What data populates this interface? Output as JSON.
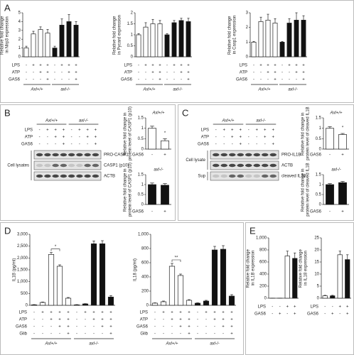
{
  "panels": [
    {
      "label": "A",
      "groups": [
        "Axl+/+",
        "axl-/-"
      ],
      "conditions": [
        {
          "name": "LPS",
          "signs": [
            "-",
            "+",
            "+",
            "+",
            "-",
            "+",
            "+",
            "+"
          ]
        },
        {
          "name": "ATP",
          "signs": [
            "-",
            "-",
            "+",
            "+",
            "-",
            "-",
            "+",
            "+"
          ]
        },
        {
          "name": "GAS6",
          "signs": [
            "-",
            "-",
            "-",
            "+",
            "-",
            "-",
            "-",
            "+"
          ]
        }
      ]
    },
    {
      "label": "B",
      "groups": [
        "Axl+/+",
        "axl-/-"
      ],
      "conditions": [
        {
          "name": "LPS",
          "signs": [
            "-",
            "+",
            "+",
            "+",
            "-",
            "+",
            "+",
            "+"
          ]
        },
        {
          "name": "ATP",
          "signs": [
            "-",
            "-",
            "+",
            "+",
            "-",
            "-",
            "+",
            "+"
          ]
        },
        {
          "name": "GAS6",
          "signs": [
            "-",
            "-",
            "-",
            "+",
            "-",
            "-",
            "-",
            "+"
          ]
        }
      ],
      "blot_rows": [
        "PRO-CASP1",
        "CASP1 (p10)",
        "ACTB"
      ],
      "blot_sections": [
        "Cell lysates"
      ]
    },
    {
      "label": "C",
      "groups": [
        "Axl+/+",
        "axl-/-"
      ],
      "conditions": [
        {
          "name": "LPS",
          "signs": [
            "-",
            "+",
            "+",
            "+",
            "-",
            "+",
            "+",
            "+"
          ]
        },
        {
          "name": "ATP",
          "signs": [
            "-",
            "-",
            "+",
            "+",
            "-",
            "-",
            "+",
            "+"
          ]
        },
        {
          "name": "GAS6",
          "signs": [
            "-",
            "-",
            "-",
            "+",
            "-",
            "-",
            "-",
            "+"
          ]
        }
      ],
      "blot_rows": [
        "PRO-IL1B",
        "ACTB",
        "cleaved IL1B"
      ],
      "blot_sections": [
        "Cell lysate",
        "Sup"
      ]
    },
    {
      "label": "D",
      "groups": [
        "Axl+/+",
        "axl-/-"
      ],
      "conditions": [
        {
          "name": "LPS",
          "signs": [
            "-",
            "+",
            "+",
            "+",
            "+",
            "-",
            "+",
            "+",
            "+",
            "+"
          ]
        },
        {
          "name": "ATP",
          "signs": [
            "-",
            "-",
            "+",
            "+",
            "+",
            "-",
            "-",
            "+",
            "+",
            "+"
          ]
        },
        {
          "name": "GAS6",
          "signs": [
            "-",
            "-",
            "-",
            "+",
            "+",
            "-",
            "-",
            "-",
            "+",
            "+"
          ]
        },
        {
          "name": "Glib",
          "signs": [
            "-",
            "-",
            "-",
            "-",
            "+",
            "-",
            "-",
            "-",
            "-",
            "+"
          ]
        }
      ]
    },
    {
      "label": "E",
      "conditions": [
        {
          "name": "LPS",
          "signs": [
            "-",
            "-",
            "+",
            "+"
          ]
        },
        {
          "name": "GAS6",
          "signs": [
            "-",
            "+",
            "-",
            "+"
          ]
        }
      ]
    }
  ],
  "chart_data": [
    {
      "type": "bar",
      "y_label": "Relative fold change in Nlrp3 expression",
      "ylim": [
        0,
        5
      ],
      "yticks": [
        0,
        1,
        2,
        3,
        4,
        5
      ],
      "values": [
        1,
        2.6,
        3.1,
        2.7,
        1,
        3.6,
        4.0,
        3.6
      ],
      "errors": [
        0.2,
        0.3,
        0.3,
        0.4,
        0.2,
        0.7,
        0.8,
        0.4
      ],
      "colors": [
        "#ffffff",
        "#ffffff",
        "#ffffff",
        "#ffffff",
        "#111111",
        "#111111",
        "#111111",
        "#111111"
      ]
    },
    {
      "type": "bar",
      "y_label": "Relative fold change in Pycard expression",
      "ylim": [
        0,
        2
      ],
      "yticks": [
        0,
        0.5,
        1,
        1.5,
        2
      ],
      "values": [
        1,
        1.35,
        1.5,
        1.5,
        1,
        1.55,
        1.65,
        1.6
      ],
      "errors": [
        0.05,
        0.2,
        0.2,
        0.15,
        0.05,
        0.1,
        0.1,
        0.15
      ],
      "colors": [
        "#ffffff",
        "#ffffff",
        "#ffffff",
        "#ffffff",
        "#111111",
        "#111111",
        "#111111",
        "#111111"
      ]
    },
    {
      "type": "bar",
      "y_label": "Relative fold change in Casp1 expression",
      "ylim": [
        0,
        3
      ],
      "yticks": [
        0,
        1,
        2,
        3
      ],
      "values": [
        1,
        2.4,
        2.5,
        2.3,
        1,
        2.3,
        2.5,
        2.5
      ],
      "errors": [
        0.05,
        0.3,
        0.4,
        0.3,
        0.05,
        0.3,
        0.5,
        0.3
      ],
      "colors": [
        "#ffffff",
        "#ffffff",
        "#ffffff",
        "#ffffff",
        "#111111",
        "#111111",
        "#111111",
        "#111111"
      ]
    },
    {
      "type": "bar",
      "title": "Axl+/+",
      "y_label": "Relative fold change in protein level of CASP1 (p10)",
      "ylim": [
        0,
        1.5
      ],
      "yticks": [
        0,
        0.5,
        1,
        1.5
      ],
      "x_label": "GAS6",
      "categories": [
        "-",
        "+"
      ],
      "values": [
        1,
        0.4
      ],
      "errors": [
        0.1,
        0.1
      ],
      "colors": [
        "#ffffff",
        "#ffffff"
      ],
      "annotation": "*"
    },
    {
      "type": "bar",
      "title": "axl-/-",
      "y_label": "Relative fold change in protein level of CASP1 (p10)",
      "ylim": [
        0,
        1.5
      ],
      "yticks": [
        0,
        0.5,
        1,
        1.5
      ],
      "x_label": "GAS6",
      "categories": [
        "-",
        "+"
      ],
      "values": [
        1,
        0.97
      ],
      "errors": [
        0.08,
        0.08
      ],
      "colors": [
        "#111111",
        "#111111"
      ]
    },
    {
      "type": "bar",
      "title": "Axl+/+",
      "y_label": "Relative fold change in protein level of cleaved IL1B",
      "ylim": [
        0,
        1.5
      ],
      "yticks": [
        0,
        0.5,
        1,
        1.5
      ],
      "x_label": "GAS6",
      "categories": [
        "-",
        "+"
      ],
      "values": [
        1,
        0.7
      ],
      "errors": [
        0.08,
        0.05
      ],
      "colors": [
        "#ffffff",
        "#ffffff"
      ],
      "annotation": "*"
    },
    {
      "type": "bar",
      "title": "axl-/-",
      "y_label": "Relative fold change in protein level of cleaved IL1B",
      "ylim": [
        0,
        1.5
      ],
      "yticks": [
        0,
        0.5,
        1,
        1.5
      ],
      "x_label": "GAS6",
      "categories": [
        "-",
        "+"
      ],
      "values": [
        1,
        1.1
      ],
      "errors": [
        0.05,
        0.06
      ],
      "colors": [
        "#111111",
        "#111111"
      ]
    },
    {
      "type": "bar",
      "y_label": "IL1B (pg/ml)",
      "ylim": [
        0,
        3000
      ],
      "yticks": [
        0,
        500,
        {
          "value": 1000,
          "label": "1,000"
        },
        {
          "value": 1500,
          "label": "1,500"
        },
        {
          "value": 2000,
          "label": "2,000"
        },
        {
          "value": 2500,
          "label": "2,500"
        },
        {
          "value": 3000,
          "label": "3,000"
        }
      ],
      "values": [
        20,
        120,
        2150,
        1650,
        300,
        20,
        60,
        2600,
        2600,
        350
      ],
      "errors": [
        10,
        20,
        80,
        60,
        30,
        10,
        10,
        120,
        130,
        60
      ],
      "colors": [
        "#ffffff",
        "#ffffff",
        "#ffffff",
        "#ffffff",
        "#ffffff",
        "#111111",
        "#111111",
        "#111111",
        "#111111",
        "#111111"
      ],
      "annotation": "*"
    },
    {
      "type": "bar",
      "y_label": "IL18 (pg/ml)",
      "ylim": [
        0,
        1000
      ],
      "yticks": [
        0,
        200,
        400,
        600,
        800,
        {
          "value": 1000,
          "label": "1,000"
        }
      ],
      "values": [
        30,
        50,
        550,
        420,
        70,
        30,
        60,
        780,
        790,
        130
      ],
      "errors": [
        5,
        10,
        40,
        20,
        10,
        5,
        10,
        50,
        50,
        20
      ],
      "colors": [
        "#ffffff",
        "#ffffff",
        "#ffffff",
        "#ffffff",
        "#ffffff",
        "#111111",
        "#111111",
        "#111111",
        "#111111",
        "#111111"
      ],
      "annotation": "**"
    },
    {
      "type": "bar",
      "y_label": "Relative fold change in IL1B expression",
      "ylim": [
        0,
        1000
      ],
      "yticks": [
        0,
        200,
        400,
        600,
        800,
        {
          "value": 1000,
          "label": "1,000"
        }
      ],
      "values": [
        1,
        1,
        700,
        660
      ],
      "errors": [
        1,
        1,
        80,
        90
      ],
      "colors": [
        "#ffffff",
        "#111111",
        "#ffffff",
        "#111111"
      ]
    },
    {
      "type": "bar",
      "y_label": "Relative fold change in IL18 expression",
      "ylim": [
        0,
        25
      ],
      "yticks": [
        0,
        5,
        10,
        15,
        20,
        25
      ],
      "values": [
        1,
        1,
        18,
        16
      ],
      "errors": [
        0.2,
        0.2,
        1.5,
        2
      ],
      "colors": [
        "#ffffff",
        "#111111",
        "#ffffff",
        "#111111"
      ]
    }
  ]
}
